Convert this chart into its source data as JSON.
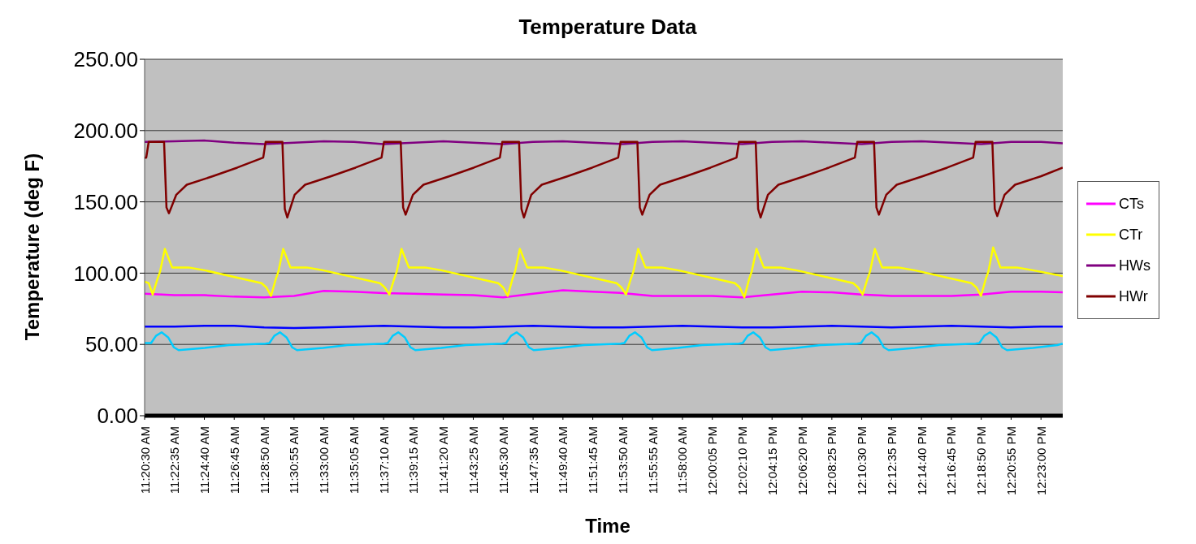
{
  "chart_data": {
    "type": "line",
    "title": "Temperature Data",
    "xlabel": "Time",
    "ylabel": "Temperature (deg F)",
    "x": [
      11.3417,
      11.3764,
      11.4111,
      11.4458,
      11.4806,
      11.5153,
      11.55,
      11.5847,
      11.6194,
      11.6542,
      11.6889,
      11.7236,
      11.7583,
      11.7931,
      11.8278,
      11.8625,
      11.8972,
      11.9319,
      11.9667,
      12.0014,
      12.0361,
      12.0708,
      12.1056,
      12.1403,
      12.175,
      12.2097,
      12.2444,
      12.2792,
      12.3139,
      12.3486,
      12.3833,
      12.4086
    ],
    "xlim": [
      11.3417,
      12.4086
    ],
    "xticks": [
      {
        "value": 11.3417,
        "label": "11:20:30 AM"
      },
      {
        "value": 11.3764,
        "label": "11:22:35 AM"
      },
      {
        "value": 11.4111,
        "label": "11:24:40 AM"
      },
      {
        "value": 11.4458,
        "label": "11:26:45 AM"
      },
      {
        "value": 11.4806,
        "label": "11:28:50 AM"
      },
      {
        "value": 11.5153,
        "label": "11:30:55 AM"
      },
      {
        "value": 11.55,
        "label": "11:33:00 AM"
      },
      {
        "value": 11.5847,
        "label": "11:35:05 AM"
      },
      {
        "value": 11.6194,
        "label": "11:37:10 AM"
      },
      {
        "value": 11.6542,
        "label": "11:39:15 AM"
      },
      {
        "value": 11.6889,
        "label": "11:41:20 AM"
      },
      {
        "value": 11.7236,
        "label": "11:43:25 AM"
      },
      {
        "value": 11.7583,
        "label": "11:45:30 AM"
      },
      {
        "value": 11.7931,
        "label": "11:47:35 AM"
      },
      {
        "value": 11.8278,
        "label": "11:49:40 AM"
      },
      {
        "value": 11.8625,
        "label": "11:51:45 AM"
      },
      {
        "value": 11.8972,
        "label": "11:53:50 AM"
      },
      {
        "value": 11.9319,
        "label": "11:55:55 AM"
      },
      {
        "value": 11.9667,
        "label": "11:58:00 AM"
      },
      {
        "value": 12.0014,
        "label": "12:00:05 PM"
      },
      {
        "value": 12.0361,
        "label": "12:02:10 PM"
      },
      {
        "value": 12.0708,
        "label": "12:04:15 PM"
      },
      {
        "value": 12.1056,
        "label": "12:06:20 PM"
      },
      {
        "value": 12.1403,
        "label": "12:08:25 PM"
      },
      {
        "value": 12.175,
        "label": "12:10:30 PM"
      },
      {
        "value": 12.2097,
        "label": "12:12:35 PM"
      },
      {
        "value": 12.2444,
        "label": "12:14:40 PM"
      },
      {
        "value": 12.2792,
        "label": "12:16:45 PM"
      },
      {
        "value": 12.3139,
        "label": "12:18:50 PM"
      },
      {
        "value": 12.3486,
        "label": "12:20:55 PM"
      },
      {
        "value": 12.3833,
        "label": "12:23:00 PM"
      }
    ],
    "ylim": [
      0,
      250
    ],
    "yticks": [
      {
        "value": 0,
        "label": "0.00"
      },
      {
        "value": 50,
        "label": "50.00"
      },
      {
        "value": 100,
        "label": "100.00"
      },
      {
        "value": 150,
        "label": "150.00"
      },
      {
        "value": 200,
        "label": "200.00"
      },
      {
        "value": 250,
        "label": "250.00"
      }
    ],
    "grid": "y",
    "legend": "right",
    "marker": "none",
    "line_style": "solid",
    "series": [
      {
        "name": "CTs",
        "color": "#ff00ff",
        "values": [
          85.5,
          84.5,
          84.5,
          83.5,
          83,
          84,
          87.5,
          87,
          86,
          85.5,
          85,
          84.5,
          83,
          85.5,
          88,
          87,
          86,
          84,
          84,
          84,
          83,
          85,
          87,
          86.5,
          85,
          84,
          84,
          84,
          85,
          87,
          87,
          86.5
        ]
      },
      {
        "name": "CTr",
        "color": "#ffff00",
        "x": [
          11.3417,
          11.3464,
          11.3511,
          11.3567,
          11.3596,
          11.3652,
          11.3737,
          11.3926,
          11.4115,
          11.4776,
          11.4832,
          11.4886,
          11.4942,
          11.4971,
          11.5027,
          11.5112,
          11.5301,
          11.549,
          11.6151,
          11.6207,
          11.6261,
          11.6317,
          11.6346,
          11.6402,
          11.6487,
          11.6676,
          11.6865,
          11.7526,
          11.7582,
          11.7636,
          11.7692,
          11.7721,
          11.7777,
          11.7862,
          11.8051,
          11.824,
          11.8901,
          11.8957,
          11.9011,
          11.9067,
          11.9096,
          11.9152,
          11.9237,
          11.9426,
          11.9615,
          12.0276,
          12.0332,
          12.0386,
          12.0442,
          12.0471,
          12.0527,
          12.0612,
          12.0801,
          12.099,
          12.1651,
          12.1707,
          12.1761,
          12.1817,
          12.1846,
          12.1902,
          12.1987,
          12.2176,
          12.2365,
          12.3026,
          12.3082,
          12.3136,
          12.3192,
          12.3221,
          12.3277,
          12.3362,
          12.3551,
          12.374,
          12.4086
        ],
        "values": [
          94,
          93,
          85,
          96,
          101,
          117,
          104,
          104,
          102,
          93,
          90,
          84,
          96,
          101,
          117,
          104,
          104,
          102,
          93,
          90,
          85,
          96,
          101,
          117,
          104,
          104,
          102,
          93,
          90,
          84,
          96,
          101,
          117,
          104,
          104,
          102,
          93,
          90,
          85,
          96,
          101,
          117,
          104,
          104,
          102,
          93,
          90,
          83,
          96,
          101,
          117,
          104,
          104,
          102,
          93,
          90,
          85,
          96,
          101,
          117,
          104,
          104,
          102,
          93,
          90,
          84,
          96,
          101,
          118,
          104,
          104,
          102,
          98
        ]
      },
      {
        "name": "HWs",
        "color": "#800080",
        "values": [
          192,
          192.5,
          193,
          191.5,
          190.5,
          191.5,
          192.5,
          192,
          190.5,
          191.5,
          192.5,
          191.5,
          190.5,
          192,
          192.5,
          191.5,
          190.5,
          192,
          192.5,
          191.5,
          190.5,
          192,
          192.5,
          191.5,
          190.5,
          192,
          192.5,
          191.5,
          190.5,
          192,
          192,
          191
        ]
      },
      {
        "name": "HWr",
        "color": "#800000",
        "x": [
          11.3417,
          11.3436,
          11.3464,
          11.3643,
          11.3671,
          11.37,
          11.3785,
          11.3907,
          11.421,
          11.4493,
          11.4795,
          11.4823,
          11.5018,
          11.5046,
          11.5075,
          11.516,
          11.5282,
          11.5585,
          11.5868,
          11.617,
          11.6198,
          11.6393,
          11.6421,
          11.645,
          11.6535,
          11.6657,
          11.696,
          11.7243,
          11.7545,
          11.7573,
          11.7768,
          11.7796,
          11.7825,
          11.791,
          11.8032,
          11.8335,
          11.8618,
          11.892,
          11.8948,
          11.9143,
          11.9171,
          11.92,
          11.9285,
          11.9407,
          11.971,
          11.9993,
          12.0295,
          12.0323,
          12.0518,
          12.0546,
          12.0575,
          12.066,
          12.0782,
          12.1085,
          12.1368,
          12.167,
          12.1698,
          12.1893,
          12.1921,
          12.195,
          12.2035,
          12.2157,
          12.246,
          12.2743,
          12.3045,
          12.3073,
          12.3268,
          12.3296,
          12.3325,
          12.341,
          12.3532,
          12.3835,
          12.4086
        ],
        "values": [
          181,
          181,
          192,
          192,
          146,
          142,
          155,
          162,
          168,
          174,
          181,
          192,
          192,
          145,
          139,
          155,
          162,
          168,
          174,
          181,
          192,
          192,
          146,
          141,
          155,
          162,
          168,
          174,
          181,
          192,
          192,
          145,
          139,
          155,
          162,
          168,
          174,
          181,
          192,
          192,
          146,
          141,
          155,
          162,
          168,
          174,
          181,
          192,
          192,
          145,
          139,
          155,
          162,
          168,
          174,
          181,
          192,
          192,
          146,
          141,
          155,
          162,
          168,
          174,
          181,
          192,
          192,
          145,
          140,
          155,
          162,
          168,
          174
        ]
      },
      {
        "color": "#0000ff",
        "values": [
          62.5,
          62.5,
          63,
          63,
          62,
          61.5,
          62,
          62.5,
          63,
          62.5,
          62,
          62,
          62.5,
          63,
          62.5,
          62,
          62,
          62.5,
          63,
          62.5,
          62,
          62,
          62.5,
          63,
          62.5,
          62,
          62.5,
          63,
          62.5,
          62,
          62.5,
          62.5
        ]
      },
      {
        "color": "#00ccff",
        "x": [
          11.3417,
          11.3492,
          11.3549,
          11.3615,
          11.369,
          11.3756,
          11.3813,
          11.4115,
          11.4398,
          11.4823,
          11.4867,
          11.4924,
          11.499,
          11.5065,
          11.5131,
          11.5188,
          11.549,
          11.5773,
          11.6198,
          11.6242,
          11.6299,
          11.6365,
          11.644,
          11.6506,
          11.6563,
          11.6865,
          11.7148,
          11.7573,
          11.7617,
          11.7674,
          11.774,
          11.7815,
          11.7881,
          11.7938,
          11.824,
          11.8523,
          11.8948,
          11.8992,
          11.9049,
          11.9115,
          11.919,
          11.9256,
          11.9313,
          11.9615,
          11.9898,
          12.0323,
          12.0367,
          12.0424,
          12.049,
          12.0565,
          12.0631,
          12.0688,
          12.099,
          12.1273,
          12.1698,
          12.1742,
          12.1799,
          12.1865,
          12.194,
          12.2006,
          12.2063,
          12.2365,
          12.2648,
          12.3073,
          12.3117,
          12.3174,
          12.324,
          12.3315,
          12.3381,
          12.3438,
          12.374,
          12.4023,
          12.4086
        ],
        "values": [
          51,
          51,
          56,
          58.5,
          55,
          48,
          46,
          47.5,
          49.5,
          50.5,
          51,
          56,
          58.5,
          55,
          48,
          46,
          47.5,
          49.5,
          50.5,
          51,
          56,
          58.5,
          55,
          48,
          46,
          47.5,
          49.5,
          50.5,
          51,
          56,
          58.5,
          55,
          48,
          46,
          47.5,
          49.5,
          50.5,
          51,
          56,
          58.5,
          55,
          48,
          46,
          47.5,
          49.5,
          50.5,
          51,
          56,
          58.5,
          55,
          48,
          46,
          47.5,
          49.5,
          50.5,
          51,
          56,
          58.5,
          55,
          48,
          46,
          47.5,
          49.5,
          50.5,
          51,
          56,
          58.5,
          55,
          48,
          46,
          47.5,
          49.5,
          50.5
        ]
      }
    ]
  }
}
